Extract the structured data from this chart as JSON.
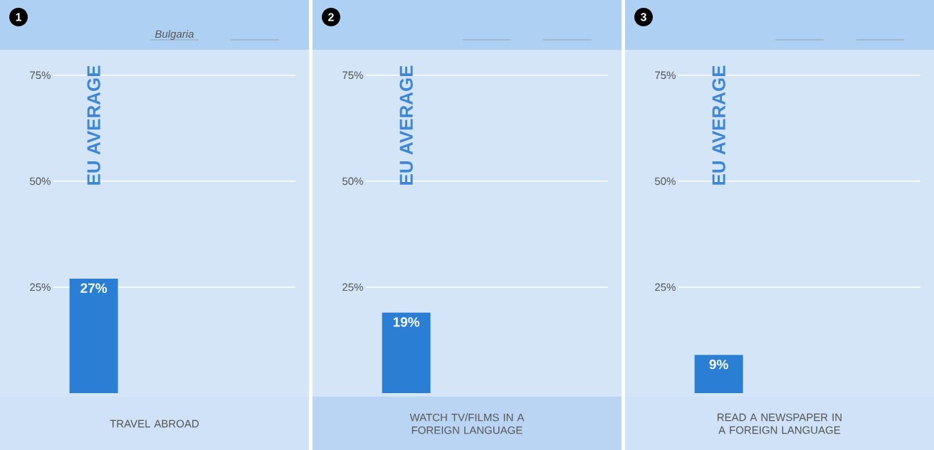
{
  "chart_data": [
    {
      "type": "bar",
      "title": "1",
      "xlabel": "TRAVEL ABROAD",
      "categories": [
        "EU AVERAGE",
        "Bulgaria",
        null
      ],
      "values": [
        27,
        null,
        null
      ],
      "value_labels": [
        "27%",
        null,
        null
      ],
      "color": "#2a7fd4",
      "ylim": [
        0,
        81
      ],
      "yticks": [
        {
          "value": 25,
          "label": "25%"
        },
        {
          "value": 50,
          "label": "50%"
        },
        {
          "value": 75,
          "label": "75%"
        }
      ],
      "grid": "y"
    },
    {
      "type": "bar",
      "title": "2",
      "xlabel": "WATCH TV/FILMS IN A FOREIGN LANGUAGE",
      "categories": [
        "EU AVERAGE",
        null,
        null
      ],
      "values": [
        19,
        null,
        null
      ],
      "value_labels": [
        "19%",
        null,
        null
      ],
      "color": "#2a7fd4",
      "ylim": [
        0,
        81
      ],
      "yticks": [
        {
          "value": 25,
          "label": "25%"
        },
        {
          "value": 50,
          "label": "50%"
        },
        {
          "value": 75,
          "label": "75%"
        }
      ],
      "grid": "y"
    },
    {
      "type": "bar",
      "title": "3",
      "xlabel": "READ A NEWSPAPER IN A FOREIGN LANGUAGE",
      "categories": [
        "EU AVERAGE",
        null,
        null
      ],
      "values": [
        9,
        null,
        null
      ],
      "value_labels": [
        "9%",
        null,
        null
      ],
      "color": "#2a7fd4",
      "ylim": [
        0,
        81
      ],
      "yticks": [
        {
          "value": 25,
          "label": "25%"
        },
        {
          "value": 50,
          "label": "50%"
        },
        {
          "value": 75,
          "label": "75%"
        }
      ],
      "grid": "y"
    }
  ]
}
